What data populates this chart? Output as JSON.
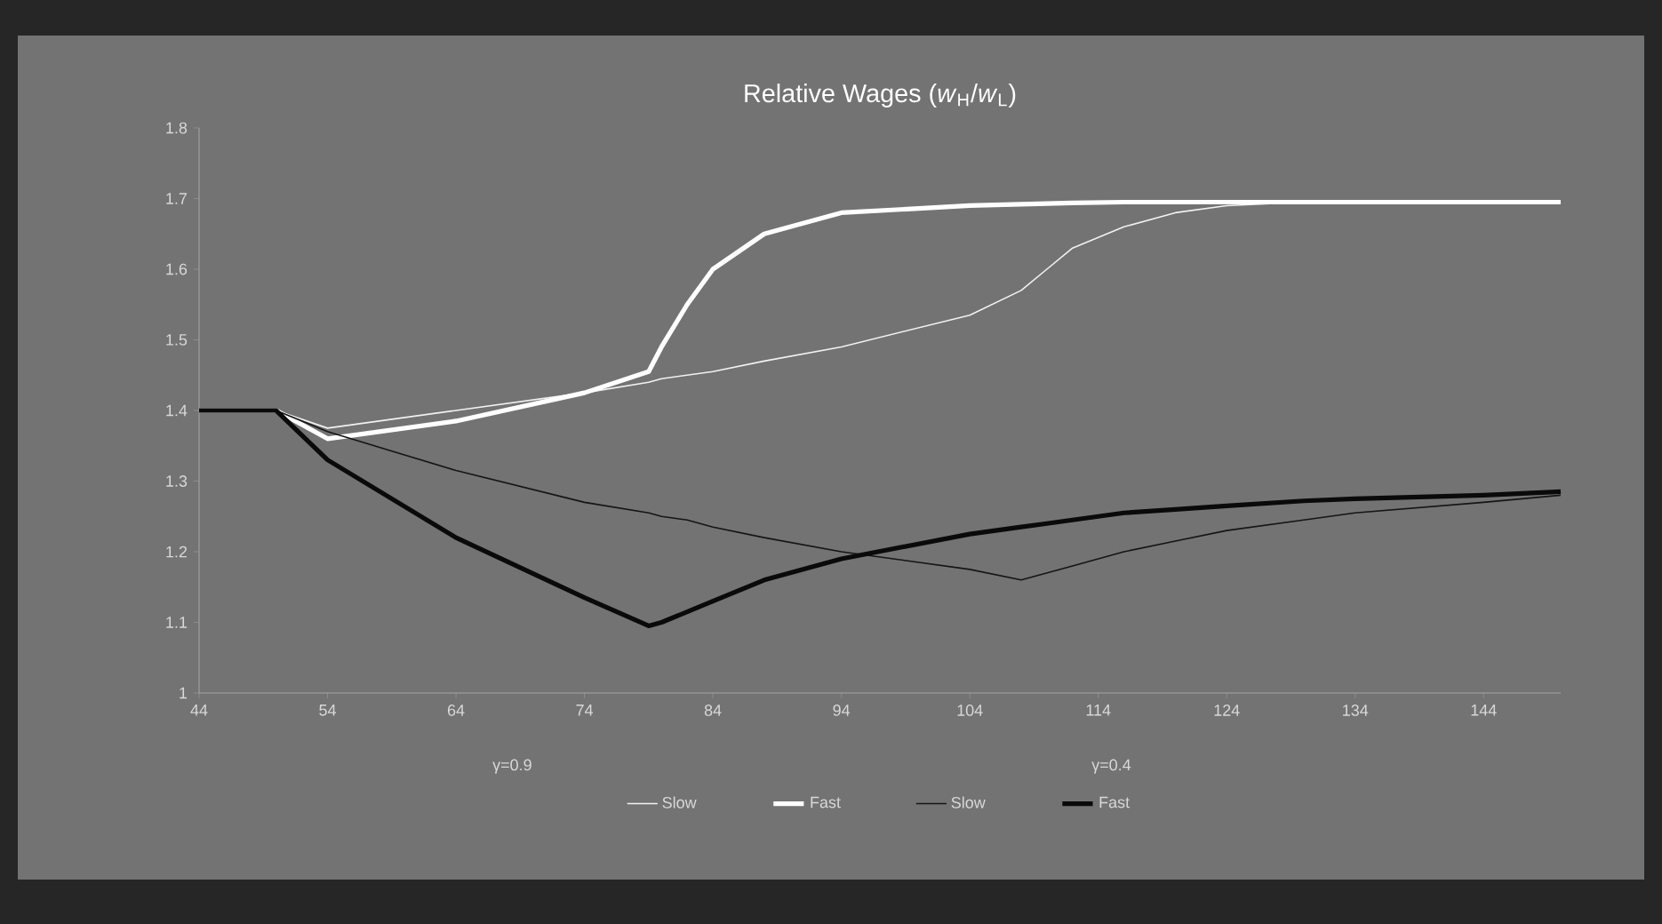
{
  "chart_data": {
    "type": "line",
    "title": "Relative Wages (*w*$_{H}$/*w*$_{L}$)",
    "x": [
      44,
      50,
      54,
      64,
      74,
      79,
      80,
      82,
      84,
      88,
      94,
      104,
      108,
      110,
      112,
      116,
      120,
      124,
      130,
      134,
      144,
      150
    ],
    "series": [
      {
        "name": "Slow",
        "color": "#f2f2f2",
        "values": [
          1.4,
          1.4,
          1.375,
          1.4,
          1.425,
          1.44,
          1.445,
          1.45,
          1.455,
          1.47,
          1.49,
          1.535,
          1.57,
          1.6,
          1.63,
          1.66,
          1.68,
          1.69,
          1.695,
          1.695,
          1.695,
          1.695
        ]
      },
      {
        "name": "Fast",
        "color": "#ffffff",
        "values": [
          1.4,
          1.4,
          1.36,
          1.385,
          1.425,
          1.455,
          1.49,
          1.55,
          1.6,
          1.65,
          1.68,
          1.69,
          1.692,
          1.693,
          1.694,
          1.695,
          1.695,
          1.695,
          1.695,
          1.695,
          1.695,
          1.695
        ]
      },
      {
        "name": "Slow",
        "color": "#151515",
        "values": [
          1.4,
          1.4,
          1.37,
          1.315,
          1.27,
          1.255,
          1.25,
          1.245,
          1.235,
          1.22,
          1.2,
          1.175,
          1.16,
          1.17,
          1.18,
          1.2,
          1.215,
          1.23,
          1.245,
          1.255,
          1.27,
          1.28
        ]
      },
      {
        "name": "Fast",
        "color": "#0a0a0a",
        "values": [
          1.4,
          1.4,
          1.33,
          1.22,
          1.135,
          1.095,
          1.1,
          1.115,
          1.13,
          1.16,
          1.19,
          1.225,
          1.235,
          1.24,
          1.245,
          1.255,
          1.26,
          1.265,
          1.272,
          1.275,
          1.28,
          1.285
        ]
      }
    ],
    "xlim": [
      44,
      150
    ],
    "ylim": [
      1,
      1.8
    ],
    "xticks": [
      44,
      54,
      64,
      74,
      84,
      94,
      104,
      114,
      124,
      134,
      144
    ],
    "yticks": [
      1,
      1.1,
      1.2,
      1.3,
      1.4,
      1.5,
      1.6,
      1.7,
      1.8
    ],
    "legend": "bottom",
    "grid": false,
    "marker": "none",
    "line_style": "solid",
    "annotations": [
      "γ=0.9",
      "γ=0.4"
    ]
  }
}
